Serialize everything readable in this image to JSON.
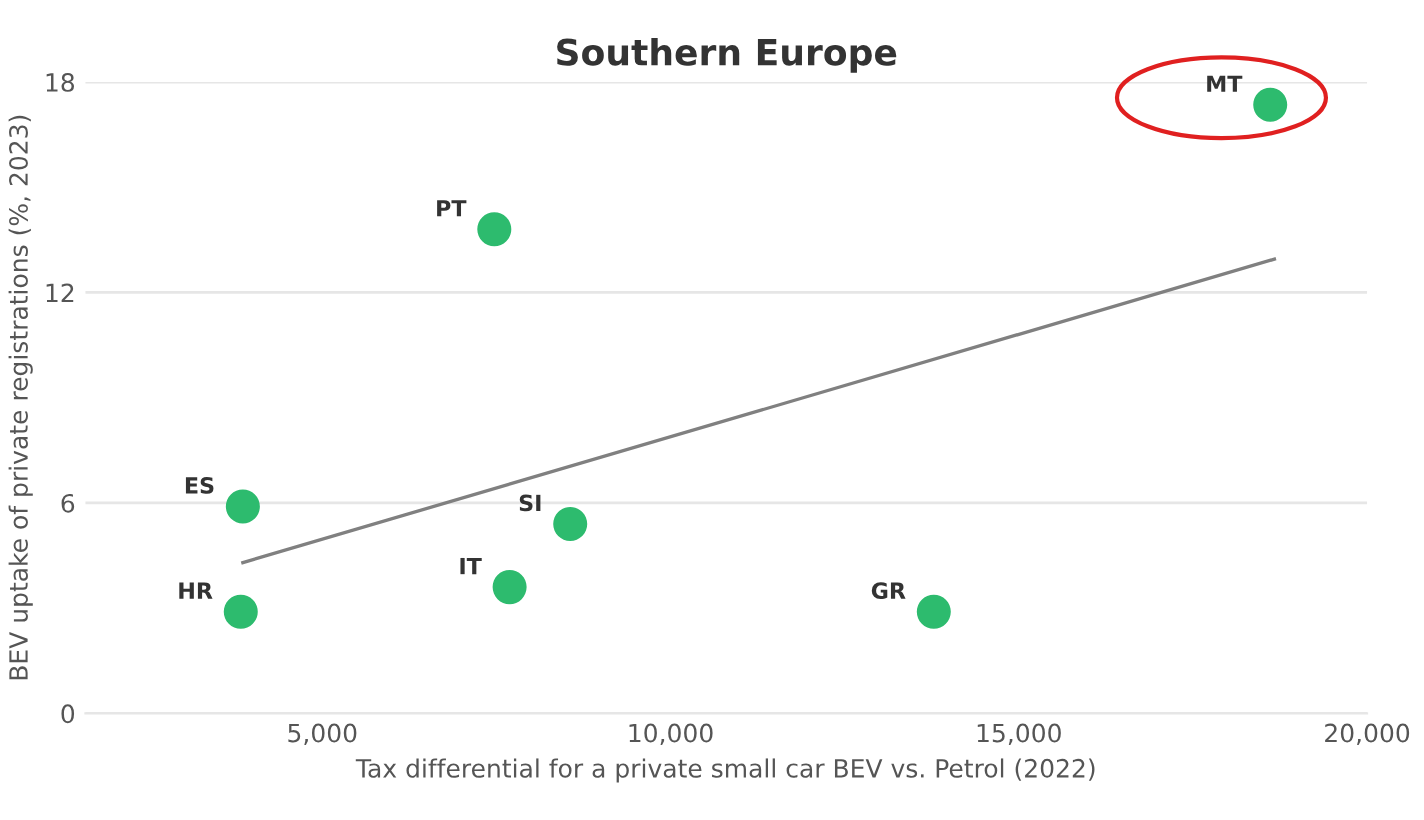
{
  "chart_data": {
    "type": "scatter",
    "title": "Southern Europe",
    "xlabel": "Tax differential for a private small car BEV vs. Petrol (2022)",
    "ylabel": "BEV uptake of private registrations (%, 2023)",
    "series": [
      {
        "marker": "circle",
        "color": "#2dbb6e",
        "x": [
          7470,
          3860,
          3830,
          7690,
          8560,
          13780,
          18610
        ],
        "values": [
          13.8,
          5.9,
          2.9,
          3.6,
          5.4,
          2.9,
          17.35
        ]
      },
      {
        "type": "line",
        "color": "#808080",
        "x": [
          3860,
          18670
        ],
        "values": [
          4.3,
          12.95
        ]
      }
    ],
    "annotations": [
      {
        "text": "PT",
        "x": 7470,
        "y": 13.8
      },
      {
        "text": "ES",
        "x": 3860,
        "y": 5.9
      },
      {
        "text": "HR",
        "x": 3830,
        "y": 2.9
      },
      {
        "text": "IT",
        "x": 7690,
        "y": 3.6
      },
      {
        "text": "SI",
        "x": 8560,
        "y": 5.4
      },
      {
        "text": "GR",
        "x": 13780,
        "y": 2.9
      },
      {
        "text": "MT",
        "x": 18610,
        "y": 17.35
      }
    ],
    "xlim": [
      1600,
      20000
    ],
    "xticks": [
      {
        "value": 5000,
        "label": "5,000"
      },
      {
        "value": 10000,
        "label": "10,000"
      },
      {
        "value": 15000,
        "label": "15,000"
      },
      {
        "value": 20000,
        "label": "20,000"
      }
    ],
    "ylim": [
      0,
      18
    ],
    "yticks": [
      0,
      6,
      12,
      18
    ],
    "grid": "y",
    "legend": false
  }
}
